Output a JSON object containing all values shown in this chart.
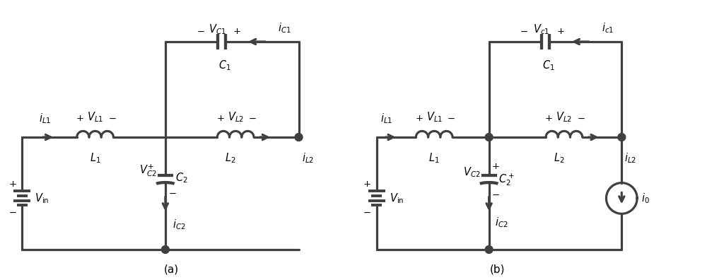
{
  "line_color": "#404040",
  "line_width": 2.3,
  "fig_width": 10.0,
  "fig_height": 3.96,
  "label_a": "(a)",
  "label_b": "(b)",
  "bg_color": "#ffffff",
  "font_size": 10.5,
  "font_size_small": 9.5
}
